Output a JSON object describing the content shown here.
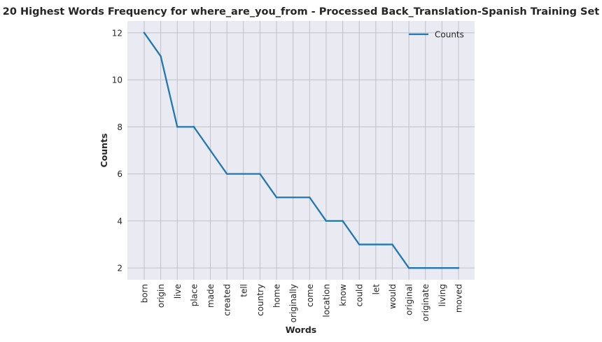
{
  "chart_data": {
    "type": "line",
    "title": "20 Highest Words Frequency for where_are_you_from - Processed Back_Translation-Spanish Training Set",
    "xlabel": "Words",
    "ylabel": "Counts",
    "categories": [
      "born",
      "origin",
      "live",
      "place",
      "made",
      "created",
      "tell",
      "country",
      "home",
      "originally",
      "come",
      "location",
      "know",
      "could",
      "let",
      "would",
      "original",
      "originate",
      "living",
      "moved"
    ],
    "series": [
      {
        "name": "Counts",
        "values": [
          12,
          11,
          8,
          8,
          7,
          6,
          6,
          6,
          5,
          5,
          5,
          4,
          4,
          3,
          3,
          3,
          2,
          2,
          2,
          2
        ]
      }
    ],
    "ylim": [
      1.5,
      12.5
    ],
    "yticks": [
      2,
      4,
      6,
      8,
      10,
      12
    ],
    "grid": true,
    "legend_position": "top-right",
    "colors": {
      "line": "#1f77b4",
      "plot_background": "#eaeaf2",
      "grid": "#c0c0c8"
    }
  }
}
